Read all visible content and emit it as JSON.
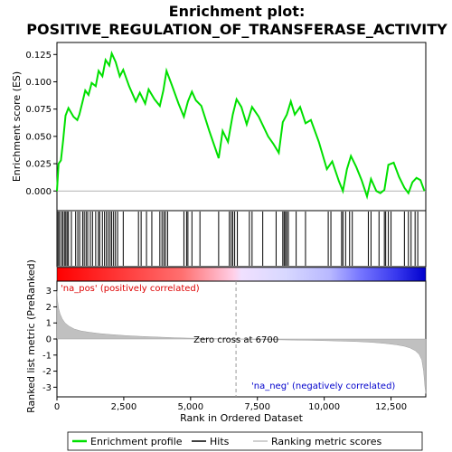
{
  "chart_data": {
    "type": "line",
    "title_line1": "Enrichment plot:",
    "title_line2": "POSITIVE_REGULATION_OF_TRANSFERASE_ACTIVITY",
    "xlabel": "Rank in Ordered Dataset",
    "ylabel_top": "Enrichment score (ES)",
    "ylabel_bottom": "Ranked list metric (PreRanked)",
    "xlim": [
      0,
      13800
    ],
    "ylim_top": [
      -0.018,
      0.136
    ],
    "ylim_bottom": [
      -3.6,
      3.6
    ],
    "x_ticks": [
      0,
      2500,
      5000,
      7500,
      10000,
      12500
    ],
    "x_tick_labels": [
      "0",
      "2,500",
      "5,000",
      "7,500",
      "10,000",
      "12,500"
    ],
    "y_ticks_top": [
      0.0,
      0.025,
      0.05,
      0.075,
      0.1,
      0.125
    ],
    "y_tick_labels_top": [
      "0.000",
      "0.025",
      "0.050",
      "0.075",
      "0.100",
      "0.125"
    ],
    "y_ticks_bottom": [
      -3,
      -2,
      -1,
      0,
      1,
      2,
      3
    ],
    "y_tick_labels_bottom": [
      "-3",
      "-2",
      "-1",
      "0",
      "1",
      "2",
      "3"
    ],
    "zero_cross_label": "Zero cross at 6700",
    "zero_cross": 6700,
    "pos_label": "'na_pos' (positively correlated)",
    "neg_label": "'na_neg' (negatively correlated)",
    "legend": [
      "Enrichment profile",
      "Hits",
      "Ranking metric scores"
    ],
    "colors": {
      "profile": "#00e000",
      "hits": "#000000",
      "metric": "#c0c0c0",
      "pos_text": "#dd0000",
      "neg_text": "#0000cc"
    },
    "es_profile": [
      [
        0,
        0.0
      ],
      [
        60,
        0.025
      ],
      [
        150,
        0.028
      ],
      [
        230,
        0.046
      ],
      [
        320,
        0.069
      ],
      [
        430,
        0.076
      ],
      [
        620,
        0.068
      ],
      [
        760,
        0.065
      ],
      [
        840,
        0.07
      ],
      [
        950,
        0.081
      ],
      [
        1060,
        0.092
      ],
      [
        1180,
        0.088
      ],
      [
        1300,
        0.099
      ],
      [
        1450,
        0.096
      ],
      [
        1560,
        0.11
      ],
      [
        1700,
        0.105
      ],
      [
        1820,
        0.12
      ],
      [
        1960,
        0.115
      ],
      [
        2050,
        0.126
      ],
      [
        2200,
        0.118
      ],
      [
        2350,
        0.105
      ],
      [
        2480,
        0.111
      ],
      [
        2700,
        0.096
      ],
      [
        2950,
        0.082
      ],
      [
        3100,
        0.09
      ],
      [
        3300,
        0.08
      ],
      [
        3430,
        0.093
      ],
      [
        3650,
        0.084
      ],
      [
        3850,
        0.078
      ],
      [
        3980,
        0.092
      ],
      [
        4100,
        0.11
      ],
      [
        4300,
        0.097
      ],
      [
        4550,
        0.08
      ],
      [
        4750,
        0.068
      ],
      [
        4900,
        0.082
      ],
      [
        5050,
        0.091
      ],
      [
        5200,
        0.083
      ],
      [
        5400,
        0.078
      ],
      [
        5700,
        0.055
      ],
      [
        6050,
        0.03
      ],
      [
        6200,
        0.055
      ],
      [
        6400,
        0.045
      ],
      [
        6580,
        0.07
      ],
      [
        6720,
        0.084
      ],
      [
        6900,
        0.077
      ],
      [
        7100,
        0.061
      ],
      [
        7300,
        0.077
      ],
      [
        7550,
        0.068
      ],
      [
        7900,
        0.05
      ],
      [
        8100,
        0.043
      ],
      [
        8300,
        0.035
      ],
      [
        8450,
        0.063
      ],
      [
        8600,
        0.07
      ],
      [
        8750,
        0.082
      ],
      [
        8900,
        0.07
      ],
      [
        9100,
        0.077
      ],
      [
        9300,
        0.062
      ],
      [
        9500,
        0.065
      ],
      [
        9800,
        0.045
      ],
      [
        10100,
        0.02
      ],
      [
        10300,
        0.027
      ],
      [
        10550,
        0.009
      ],
      [
        10700,
        0.0
      ],
      [
        10850,
        0.02
      ],
      [
        11000,
        0.032
      ],
      [
        11200,
        0.022
      ],
      [
        11400,
        0.01
      ],
      [
        11600,
        -0.005
      ],
      [
        11750,
        0.011
      ],
      [
        11950,
        0.0
      ],
      [
        12100,
        -0.002
      ],
      [
        12250,
        0.001
      ],
      [
        12400,
        0.024
      ],
      [
        12600,
        0.026
      ],
      [
        12800,
        0.013
      ],
      [
        13000,
        0.003
      ],
      [
        13150,
        -0.002
      ],
      [
        13300,
        0.008
      ],
      [
        13450,
        0.012
      ],
      [
        13600,
        0.01
      ],
      [
        13750,
        0.0
      ]
    ],
    "hits": [
      40,
      90,
      160,
      220,
      280,
      330,
      380,
      430,
      540,
      700,
      780,
      850,
      960,
      1020,
      1090,
      1150,
      1250,
      1330,
      1450,
      1550,
      1600,
      1700,
      1780,
      1850,
      1920,
      1990,
      2050,
      2120,
      2190,
      2270,
      2480,
      3050,
      3150,
      3350,
      3550,
      3850,
      3930,
      4000,
      4060,
      4140,
      4750,
      4850,
      4900,
      5050,
      5350,
      6050,
      6450,
      6520,
      6580,
      6650,
      6750,
      7200,
      7300,
      7700,
      8200,
      8450,
      8500,
      8550,
      8600,
      8660,
      8950,
      9300,
      10150,
      10250,
      10650,
      10700,
      10800,
      10950,
      11050,
      11650,
      11750,
      12050,
      12250,
      12300,
      12400,
      12500,
      13000,
      13150,
      13250,
      13400,
      13500
    ],
    "metric_profile": [
      [
        0,
        3.0
      ],
      [
        20,
        2.4
      ],
      [
        60,
        1.9
      ],
      [
        120,
        1.55
      ],
      [
        200,
        1.25
      ],
      [
        300,
        1.0
      ],
      [
        450,
        0.8
      ],
      [
        650,
        0.62
      ],
      [
        900,
        0.5
      ],
      [
        1200,
        0.42
      ],
      [
        1600,
        0.34
      ],
      [
        2000,
        0.28
      ],
      [
        2600,
        0.21
      ],
      [
        3200,
        0.16
      ],
      [
        3800,
        0.12
      ],
      [
        4400,
        0.08
      ],
      [
        5000,
        0.05
      ],
      [
        5600,
        0.03
      ],
      [
        6200,
        0.01
      ],
      [
        6700,
        0.0
      ],
      [
        7300,
        -0.02
      ],
      [
        8000,
        -0.04
      ],
      [
        8700,
        -0.06
      ],
      [
        9400,
        -0.08
      ],
      [
        10000,
        -0.1
      ],
      [
        10600,
        -0.13
      ],
      [
        11200,
        -0.16
      ],
      [
        11800,
        -0.21
      ],
      [
        12300,
        -0.28
      ],
      [
        12700,
        -0.36
      ],
      [
        13000,
        -0.45
      ],
      [
        13200,
        -0.55
      ],
      [
        13400,
        -0.72
      ],
      [
        13550,
        -0.95
      ],
      [
        13650,
        -1.3
      ],
      [
        13720,
        -2.0
      ],
      [
        13770,
        -3.0
      ],
      [
        13800,
        -3.4
      ]
    ],
    "colorbar_stops": [
      [
        0,
        "#ff0000"
      ],
      [
        0.34,
        "#ff7070"
      ],
      [
        0.48,
        "#ffd0e8"
      ],
      [
        0.5,
        "#f0e0ff"
      ],
      [
        0.62,
        "#d8d8ff"
      ],
      [
        0.74,
        "#b8b8ff"
      ],
      [
        0.82,
        "#7878ff"
      ],
      [
        0.92,
        "#3838ee"
      ],
      [
        1.0,
        "#0000cc"
      ]
    ]
  }
}
